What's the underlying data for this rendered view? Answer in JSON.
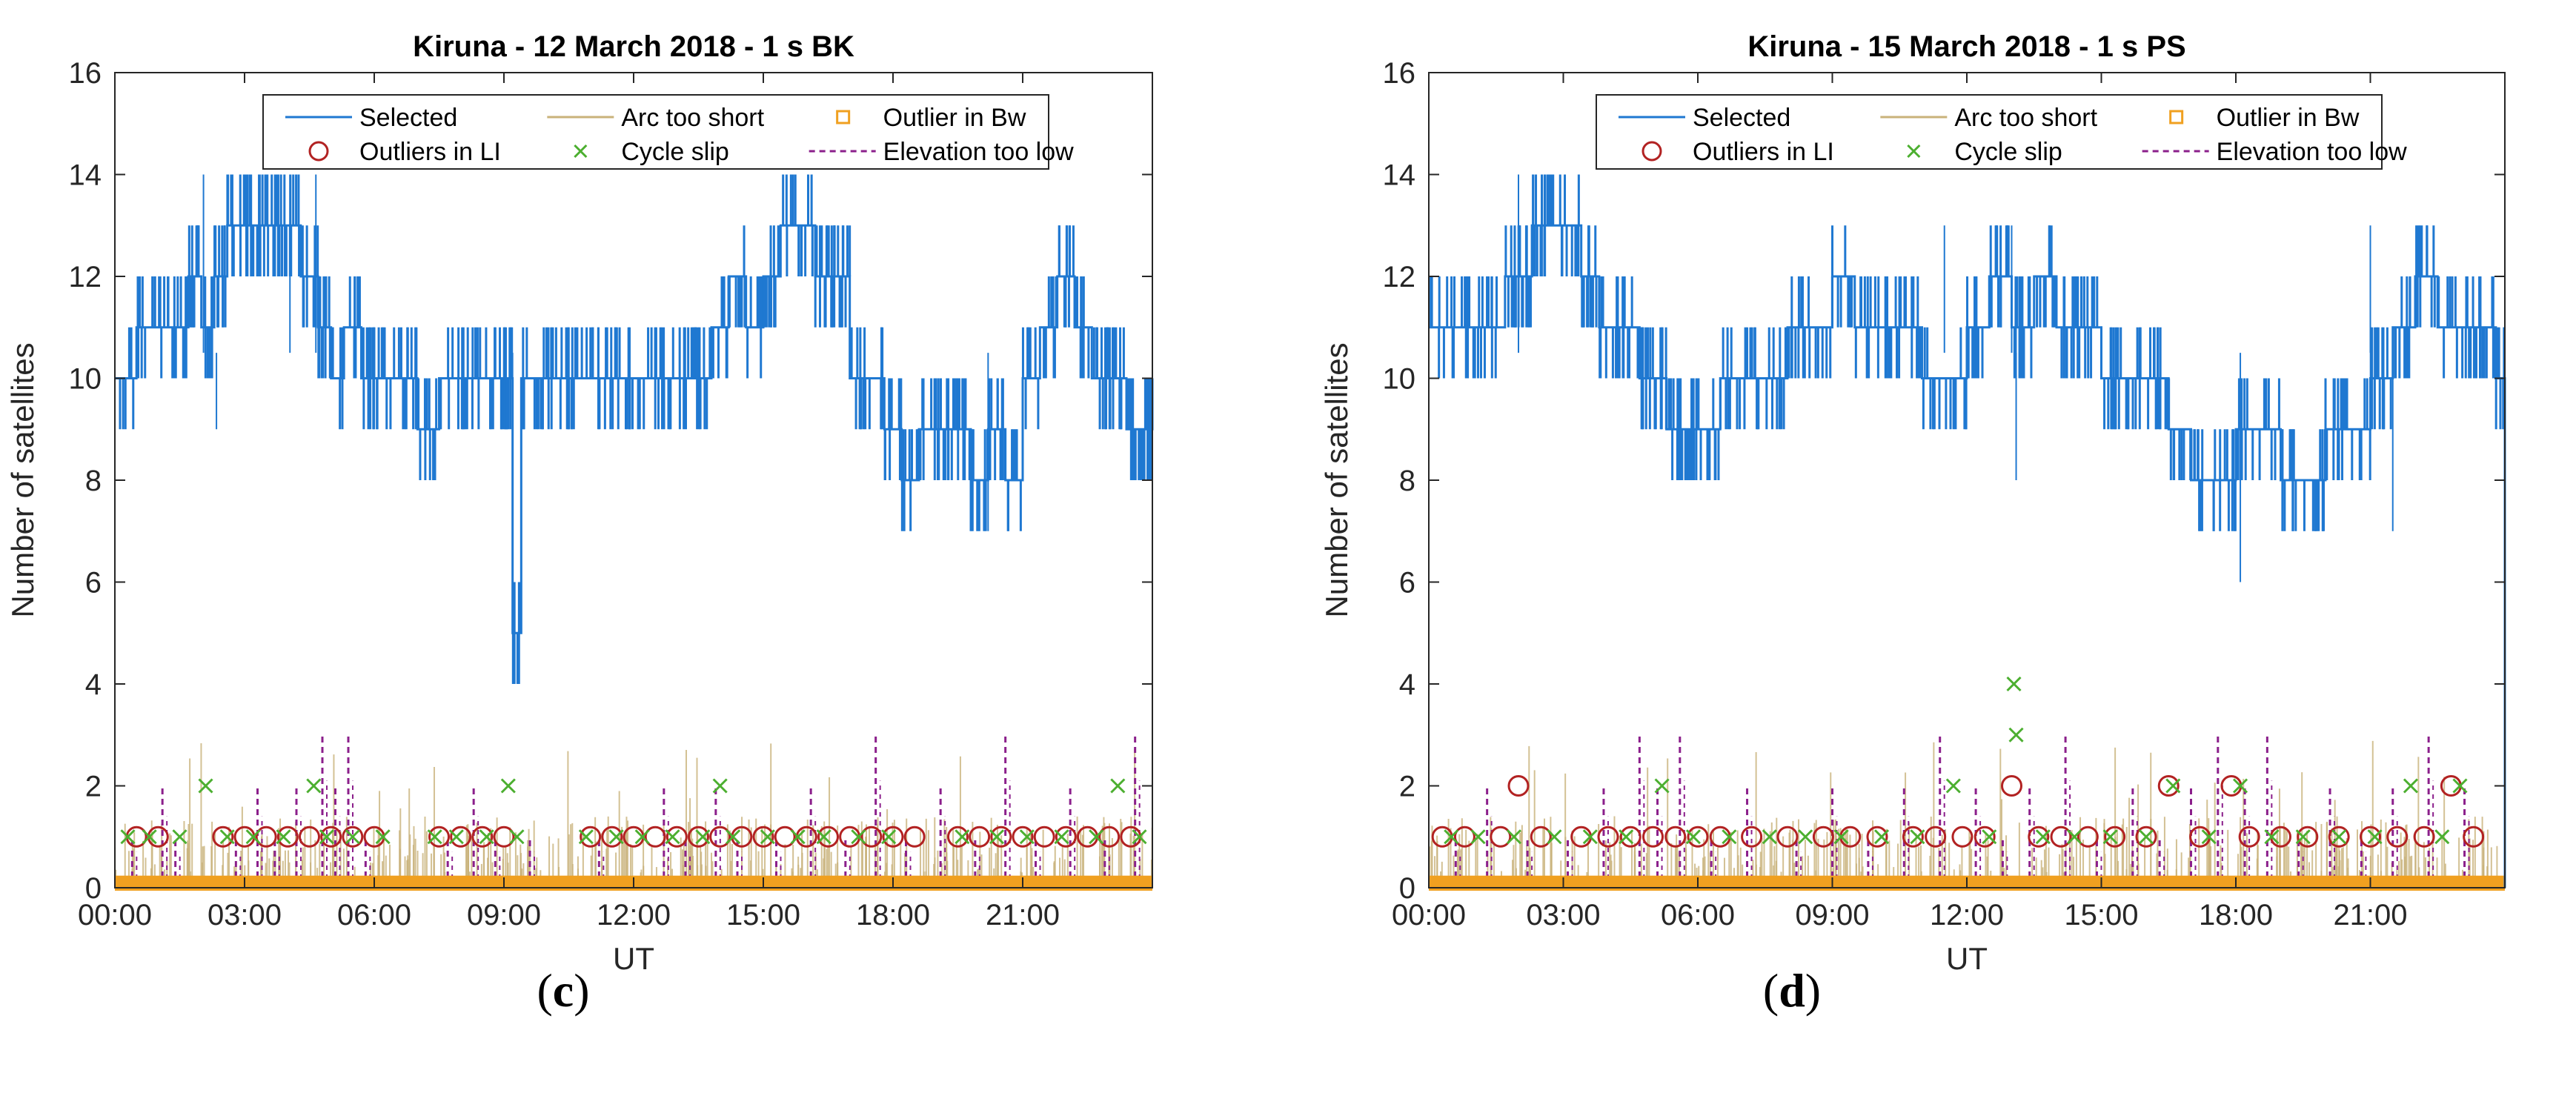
{
  "figure": {
    "panels": [
      {
        "caption_letter": "c"
      },
      {
        "caption_letter": "d"
      }
    ]
  },
  "chart_data": [
    {
      "type": "line",
      "title": "Kiruna - 12 March 2018 - 1 s BK",
      "xlabel": "UT",
      "ylabel": "Number of satellites",
      "xlim": [
        0,
        24
      ],
      "ylim": [
        0,
        16
      ],
      "x_ticks": [
        "00:00",
        "03:00",
        "06:00",
        "09:00",
        "12:00",
        "15:00",
        "18:00",
        "21:00"
      ],
      "x_tick_values": [
        0,
        3,
        6,
        9,
        12,
        15,
        18,
        21
      ],
      "y_ticks": [
        0,
        2,
        4,
        6,
        8,
        10,
        12,
        14,
        16
      ],
      "legend": [
        "Selected",
        "Arc too short",
        "Outlier in Bw",
        "Outliers in LI",
        "Cycle slip",
        "Elevation too low"
      ],
      "series": [
        {
          "name": "Selected",
          "color": "#1f78d1",
          "x": [
            0,
            0.5,
            0.9,
            1.3,
            1.7,
            2.0,
            2.3,
            2.6,
            3.0,
            3.4,
            3.8,
            4.3,
            4.7,
            5.0,
            5.3,
            5.7,
            6.0,
            6.5,
            7.0,
            7.5,
            8.0,
            8.5,
            9.0,
            9.2,
            9.4,
            9.8,
            10.3,
            10.8,
            11.3,
            11.8,
            12.3,
            12.8,
            13.3,
            13.8,
            14.2,
            14.6,
            15.0,
            15.4,
            15.8,
            16.2,
            16.6,
            17.0,
            17.4,
            17.8,
            18.2,
            18.6,
            19.0,
            19.4,
            19.8,
            20.2,
            20.6,
            21.0,
            21.4,
            21.8,
            22.2,
            22.6,
            23.0,
            23.4,
            23.8,
            24.0
          ],
          "y": [
            10,
            11,
            11,
            11,
            12,
            11,
            12,
            13,
            13,
            13,
            13,
            12,
            11,
            10,
            11,
            10,
            10,
            10,
            9,
            10,
            10,
            10,
            10,
            5,
            10,
            10,
            10,
            10,
            10,
            10,
            10,
            10,
            10,
            11,
            12,
            11,
            12,
            13,
            13,
            12,
            12,
            10,
            10,
            9,
            8,
            9,
            9,
            9,
            8,
            9,
            8,
            10,
            11,
            12,
            11,
            10,
            10,
            9,
            9,
            10
          ],
          "spikes_up": [
            [
              2.05,
              14
            ],
            [
              4.05,
              14
            ],
            [
              4.65,
              14
            ]
          ],
          "spikes_down": [
            [
              9.2,
              5
            ],
            [
              2.35,
              9
            ],
            [
              20.2,
              7
            ]
          ]
        },
        {
          "name": "Arc too short",
          "color": "#c9b27a",
          "note": ""
        },
        {
          "name": "Outlier in Bw",
          "color": "#f0a020",
          "y_band": [
            0,
            0.15
          ]
        },
        {
          "name": "Outliers in LI",
          "color": "#b22222",
          "x": [
            0.5,
            1.0,
            2.5,
            3.0,
            3.5,
            4.0,
            4.5,
            5.0,
            5.5,
            6.0,
            7.5,
            8.0,
            8.5,
            9.0,
            11.0,
            11.5,
            12.0,
            12.5,
            13.0,
            13.5,
            14.0,
            14.5,
            15.0,
            15.5,
            16.0,
            16.5,
            17.0,
            17.5,
            18.0,
            18.5,
            19.5,
            20.0,
            20.5,
            21.0,
            21.5,
            22.0,
            22.5,
            23.0,
            23.5
          ],
          "y": [
            1,
            1,
            1,
            1,
            1,
            1,
            1,
            1,
            1,
            1,
            1,
            1,
            1,
            1,
            1,
            1,
            1,
            1,
            1,
            1,
            1,
            1,
            1,
            1,
            1,
            1,
            1,
            1,
            1,
            1,
            1,
            1,
            1,
            1,
            1,
            1,
            1,
            1,
            1
          ]
        },
        {
          "name": "Cycle slip",
          "color": "#4caf30",
          "x": [
            0.3,
            0.8,
            1.5,
            2.1,
            2.6,
            3.2,
            3.9,
            4.6,
            4.9,
            5.5,
            6.2,
            7.4,
            7.9,
            8.6,
            9.1,
            9.3,
            10.9,
            11.6,
            12.2,
            12.9,
            13.6,
            14.0,
            14.3,
            15.1,
            15.8,
            16.4,
            17.2,
            17.9,
            19.6,
            20.4,
            21.1,
            21.9,
            22.7,
            23.2,
            23.7
          ],
          "y": [
            1,
            1,
            1,
            2,
            1,
            1,
            1,
            2,
            1,
            1,
            1,
            1,
            1,
            1,
            2,
            1,
            1,
            1,
            1,
            1,
            1,
            2,
            1,
            1,
            1,
            1,
            1,
            1,
            1,
            1,
            1,
            1,
            1,
            2,
            1
          ]
        },
        {
          "name": "Elevation too low",
          "color": "#8b1f8b",
          "x": [
            0.4,
            1.1,
            1.4,
            2.8,
            3.3,
            3.7,
            4.2,
            4.8,
            5.1,
            5.4,
            5.8,
            7.7,
            8.3,
            8.8,
            9.6,
            11.2,
            12.7,
            13.2,
            13.9,
            14.4,
            15.3,
            16.1,
            16.9,
            17.6,
            18.3,
            19.1,
            19.9,
            20.6,
            21.3,
            22.1,
            22.9,
            23.6
          ],
          "y": [
            1,
            2,
            1,
            1,
            2,
            1,
            2,
            3,
            2,
            3,
            1,
            1,
            2,
            1,
            1,
            1,
            2,
            1,
            2,
            1,
            1,
            2,
            1,
            3,
            1,
            2,
            1,
            3,
            1,
            2,
            1,
            3
          ]
        }
      ]
    },
    {
      "type": "line",
      "title": "Kiruna - 15 March 2018 - 1 s PS",
      "xlabel": "UT",
      "ylabel": "Number of satellites",
      "xlim": [
        0,
        24
      ],
      "ylim": [
        0,
        16
      ],
      "x_ticks": [
        "00:00",
        "03:00",
        "06:00",
        "09:00",
        "12:00",
        "15:00",
        "18:00",
        "21:00"
      ],
      "x_tick_values": [
        0,
        3,
        6,
        9,
        12,
        15,
        18,
        21
      ],
      "y_ticks": [
        0,
        2,
        4,
        6,
        8,
        10,
        12,
        14,
        16
      ],
      "legend": [
        "Selected",
        "Arc too short",
        "Outlier in Bw",
        "Outliers in LI",
        "Cycle slip",
        "Elevation too low"
      ],
      "series": [
        {
          "name": "Selected",
          "color": "#1f78d1",
          "x": [
            0,
            0.5,
            0.9,
            1.3,
            1.7,
            2.0,
            2.3,
            2.6,
            3.0,
            3.4,
            3.8,
            4.3,
            4.7,
            5.0,
            5.3,
            5.7,
            6.0,
            6.5,
            7.0,
            7.5,
            8.0,
            8.5,
            9.0,
            9.5,
            10.0,
            10.5,
            11.0,
            11.5,
            12.0,
            12.5,
            13.0,
            13.5,
            14.0,
            14.5,
            15.0,
            15.5,
            16.0,
            16.5,
            17.0,
            17.5,
            18.0,
            18.5,
            19.0,
            19.5,
            20.0,
            20.5,
            21.0,
            21.5,
            22.0,
            22.5,
            23.0,
            23.5,
            23.8,
            24.0
          ],
          "y": [
            11,
            11,
            11,
            11,
            12,
            12,
            13,
            13,
            13,
            12,
            11,
            11,
            10,
            10,
            9,
            9,
            9,
            10,
            10,
            10,
            11,
            11,
            12,
            11,
            11,
            11,
            10,
            10,
            11,
            12,
            11,
            12,
            11,
            11,
            10,
            10,
            10,
            9,
            8,
            8,
            9,
            9,
            8,
            8,
            9,
            9,
            10,
            11,
            12,
            11,
            11,
            11,
            10,
            0
          ],
          "spikes_up": [
            [
              2.0,
              14
            ],
            [
              11.5,
              13
            ],
            [
              13.0,
              13
            ],
            [
              21.0,
              13
            ]
          ],
          "spikes_down": [
            [
              13.1,
              8
            ],
            [
              18.1,
              6
            ],
            [
              21.5,
              7
            ]
          ]
        },
        {
          "name": "Arc too short",
          "color": "#c9b27a",
          "note": ""
        },
        {
          "name": "Outlier in Bw",
          "color": "#f0a020",
          "y_band": [
            0,
            0.15
          ]
        },
        {
          "name": "Outliers in LI",
          "color": "#b22222",
          "x": [
            0.3,
            0.8,
            1.6,
            2.0,
            2.5,
            3.4,
            4.0,
            4.5,
            5.0,
            5.5,
            6.0,
            6.5,
            7.2,
            8.0,
            8.8,
            9.4,
            10.0,
            10.8,
            11.3,
            11.9,
            12.4,
            13.0,
            13.6,
            14.1,
            14.7,
            15.3,
            16.0,
            16.5,
            17.2,
            17.9,
            18.3,
            19.0,
            19.6,
            20.3,
            21.0,
            21.6,
            22.2,
            22.8,
            23.3
          ],
          "y": [
            1,
            1,
            1,
            2,
            1,
            1,
            1,
            1,
            1,
            1,
            1,
            1,
            1,
            1,
            1,
            1,
            1,
            1,
            1,
            1,
            1,
            2,
            1,
            1,
            1,
            1,
            1,
            2,
            1,
            2,
            1,
            1,
            1,
            1,
            1,
            1,
            1,
            2,
            1
          ]
        },
        {
          "name": "Cycle slip",
          "color": "#4caf30",
          "x": [
            0.5,
            1.1,
            1.9,
            2.8,
            3.6,
            4.4,
            5.2,
            5.9,
            6.7,
            7.6,
            8.4,
            9.2,
            10.1,
            10.9,
            11.7,
            12.5,
            13.05,
            13.1,
            13.7,
            14.4,
            15.2,
            16.0,
            16.6,
            17.4,
            18.1,
            18.8,
            19.5,
            20.3,
            21.1,
            21.9,
            22.6,
            23.0
          ],
          "y": [
            1,
            1,
            1,
            1,
            1,
            1,
            2,
            1,
            1,
            1,
            1,
            1,
            1,
            1,
            2,
            1,
            4,
            3,
            1,
            1,
            1,
            1,
            2,
            1,
            2,
            1,
            1,
            1,
            1,
            2,
            1,
            2
          ]
        },
        {
          "name": "Elevation too low",
          "color": "#8b1f8b",
          "x": [
            0.6,
            1.3,
            2.2,
            3.1,
            3.9,
            4.7,
            5.1,
            5.6,
            6.3,
            7.1,
            8.2,
            9.0,
            9.8,
            10.6,
            11.4,
            12.2,
            12.8,
            13.4,
            14.2,
            14.9,
            15.7,
            16.3,
            17.0,
            17.6,
            18.2,
            18.7,
            19.4,
            20.1,
            20.8,
            21.5,
            22.3,
            23.1
          ],
          "y": [
            1,
            2,
            1,
            1,
            2,
            3,
            2,
            3,
            1,
            2,
            1,
            2,
            1,
            2,
            3,
            2,
            1,
            2,
            3,
            1,
            2,
            1,
            2,
            3,
            2,
            3,
            1,
            2,
            1,
            2,
            3,
            2
          ]
        }
      ]
    }
  ]
}
